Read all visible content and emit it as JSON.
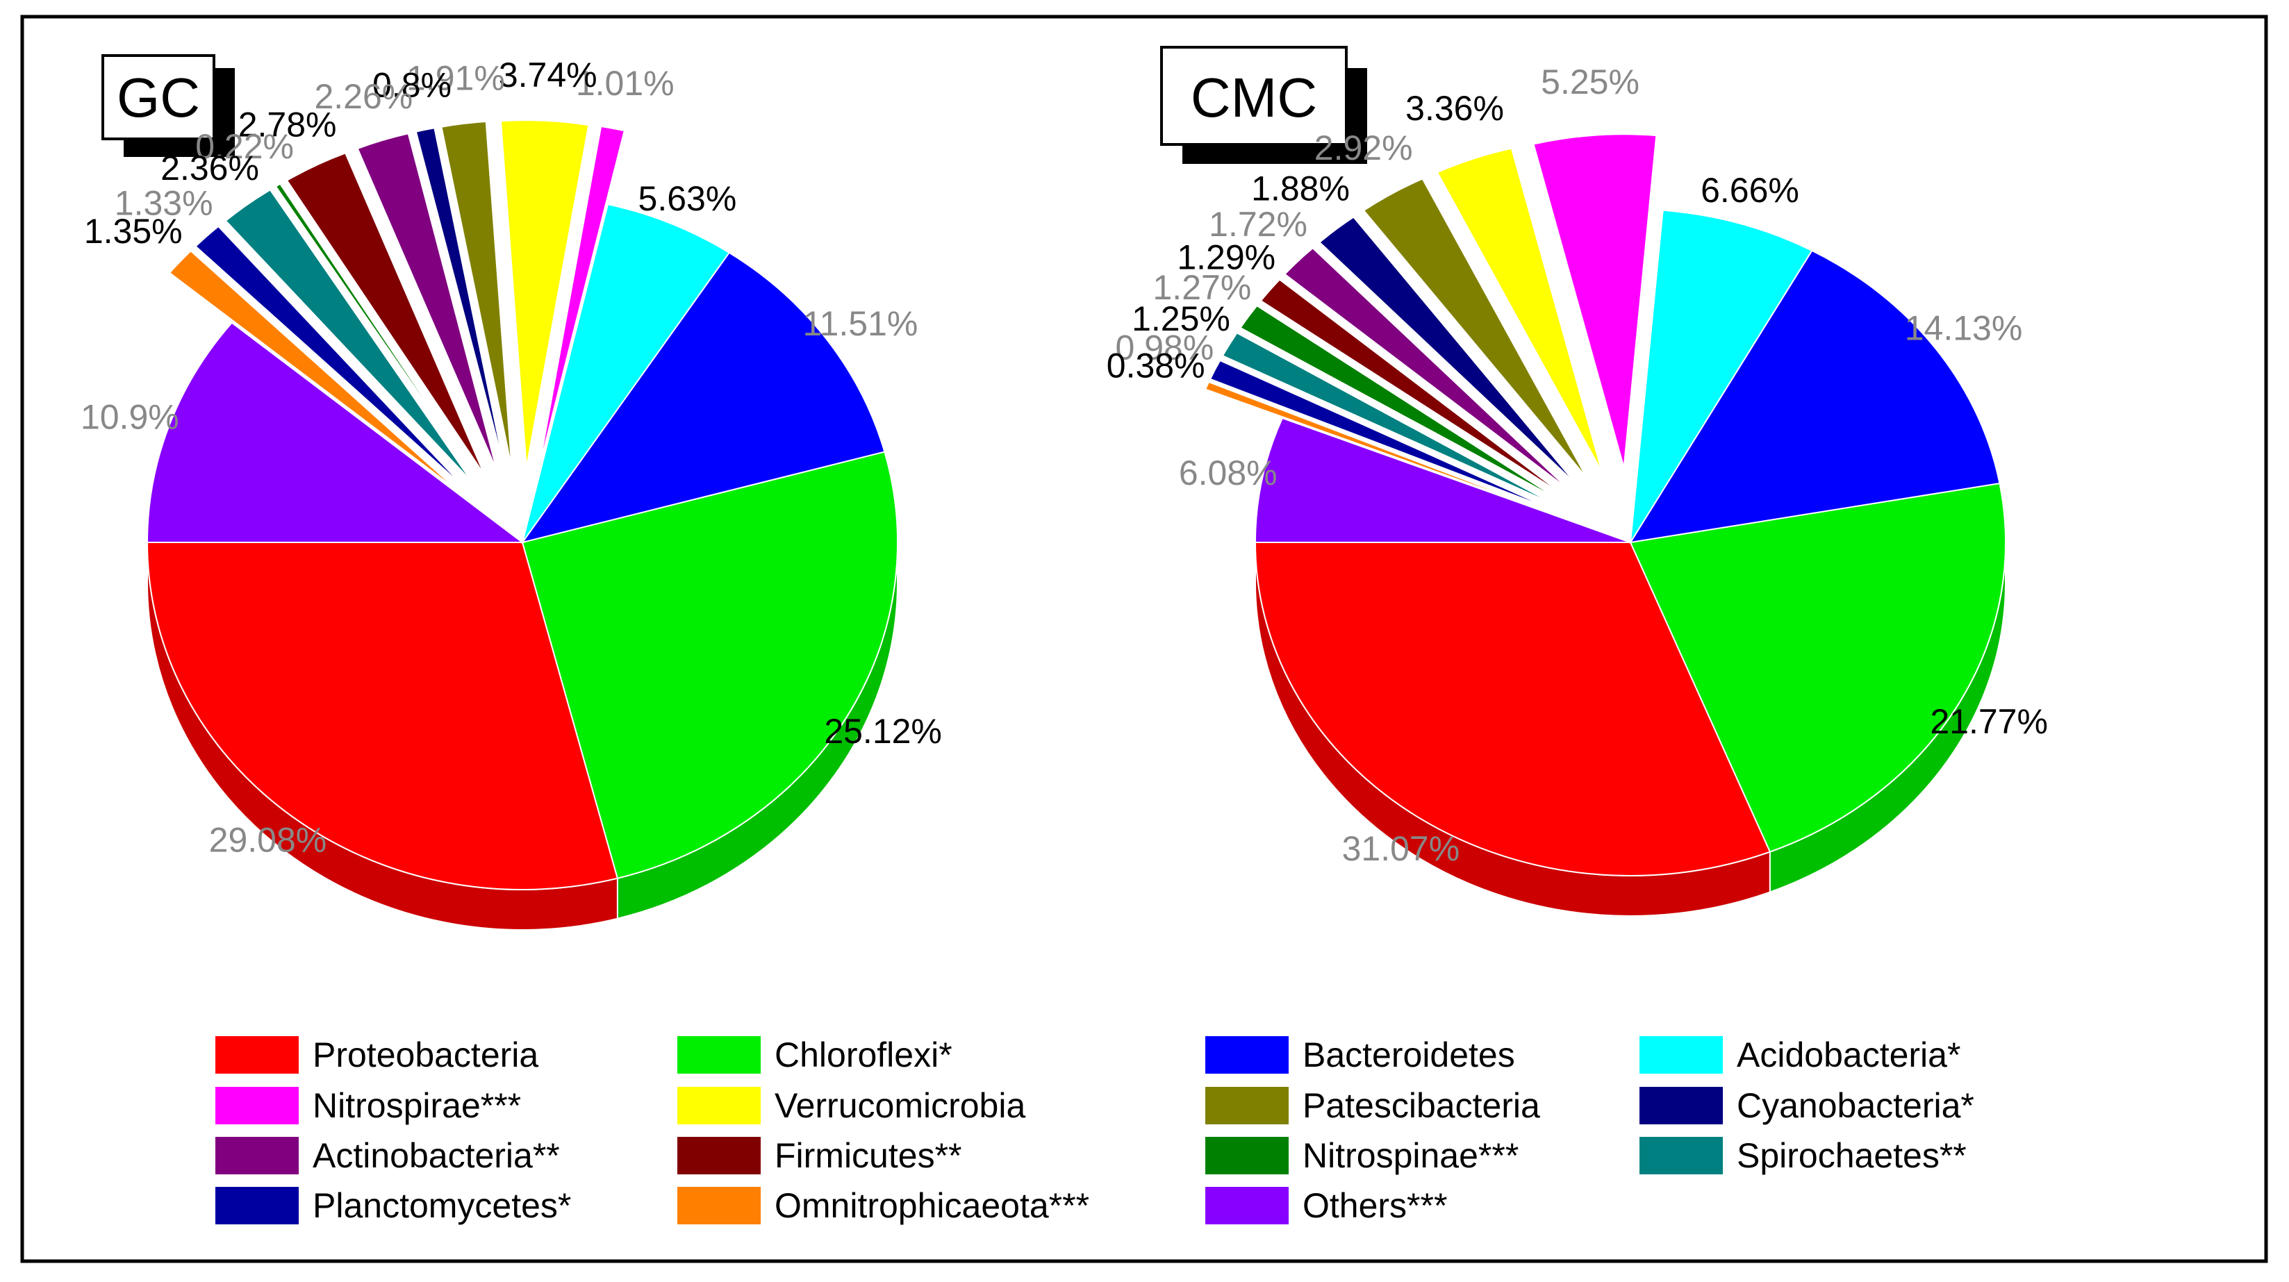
{
  "chart_data": [
    {
      "type": "pie",
      "title": "GC",
      "slices": [
        {
          "name": "Proteobacteria",
          "value": 29.08,
          "label": "29.08%"
        },
        {
          "name": "Chloroflexi*",
          "value": 25.12,
          "label": "25.12%"
        },
        {
          "name": "Bacteroidetes",
          "value": 11.51,
          "label": "11.51%"
        },
        {
          "name": "Acidobacteria*",
          "value": 5.63,
          "label": "5.63%"
        },
        {
          "name": "Nitrospirae***",
          "value": 1.01,
          "label": "1.01%"
        },
        {
          "name": "Verrucomicrobia",
          "value": 3.74,
          "label": "3.74%"
        },
        {
          "name": "Patescibacteria",
          "value": 1.91,
          "label": "1.91%"
        },
        {
          "name": "Cyanobacteria*",
          "value": 0.8,
          "label": "0.8%"
        },
        {
          "name": "Actinobacteria**",
          "value": 2.26,
          "label": "2.26%"
        },
        {
          "name": "Firmicutes**",
          "value": 2.78,
          "label": "2.78%"
        },
        {
          "name": "Nitrospinae***",
          "value": 0.22,
          "label": "0.22%"
        },
        {
          "name": "Spirochaetes**",
          "value": 2.36,
          "label": "2.36%"
        },
        {
          "name": "Planctomycetes*",
          "value": 1.33,
          "label": "1.33%"
        },
        {
          "name": "Omnitrophicaeota***",
          "value": 1.35,
          "label": "1.35%"
        },
        {
          "name": "Others***",
          "value": 10.9,
          "label": "10.9%"
        }
      ]
    },
    {
      "type": "pie",
      "title": "CMC",
      "slices": [
        {
          "name": "Proteobacteria",
          "value": 31.07,
          "label": "31.07%"
        },
        {
          "name": "Chloroflexi*",
          "value": 21.77,
          "label": "21.77%"
        },
        {
          "name": "Bacteroidetes",
          "value": 14.13,
          "label": "14.13%"
        },
        {
          "name": "Acidobacteria*",
          "value": 6.66,
          "label": "6.66%"
        },
        {
          "name": "Nitrospirae***",
          "value": 5.25,
          "label": "5.25%"
        },
        {
          "name": "Verrucomicrobia",
          "value": 3.36,
          "label": "3.36%"
        },
        {
          "name": "Patescibacteria",
          "value": 2.92,
          "label": "2.92%"
        },
        {
          "name": "Cyanobacteria*",
          "value": 1.88,
          "label": "1.88%"
        },
        {
          "name": "Actinobacteria**",
          "value": 1.72,
          "label": "1.72%"
        },
        {
          "name": "Firmicutes**",
          "value": 1.29,
          "label": "1.29%"
        },
        {
          "name": "Nitrospinae***",
          "value": 1.27,
          "label": "1.27%"
        },
        {
          "name": "Spirochaetes**",
          "value": 1.25,
          "label": "1.25%"
        },
        {
          "name": "Planctomycetes*",
          "value": 0.98,
          "label": "0.98%"
        },
        {
          "name": "Omnitrophicaeota***",
          "value": 0.38,
          "label": "0.38%"
        },
        {
          "name": "Others***",
          "value": 6.08,
          "label": "6.08%"
        }
      ]
    }
  ],
  "legend": [
    {
      "name": "Proteobacteria",
      "color": "#ff0000"
    },
    {
      "name": "Chloroflexi*",
      "color": "#00ee00"
    },
    {
      "name": "Bacteroidetes",
      "color": "#0000ff"
    },
    {
      "name": "Acidobacteria*",
      "color": "#00ffff"
    },
    {
      "name": "Nitrospirae***",
      "color": "#ff00ff"
    },
    {
      "name": "Verrucomicrobia",
      "color": "#ffff00"
    },
    {
      "name": "Patescibacteria",
      "color": "#808000"
    },
    {
      "name": "Cyanobacteria*",
      "color": "#000080"
    },
    {
      "name": "Actinobacteria**",
      "color": "#800080"
    },
    {
      "name": "Firmicutes**",
      "color": "#800000"
    },
    {
      "name": "Nitrospinae***",
      "color": "#008000"
    },
    {
      "name": "Spirochaetes**",
      "color": "#008080"
    },
    {
      "name": "Planctomycetes*",
      "color": "#0000a0"
    },
    {
      "name": "Omnitrophicaeota***",
      "color": "#ff8000"
    },
    {
      "name": "Others***",
      "color": "#8800ff"
    }
  ]
}
